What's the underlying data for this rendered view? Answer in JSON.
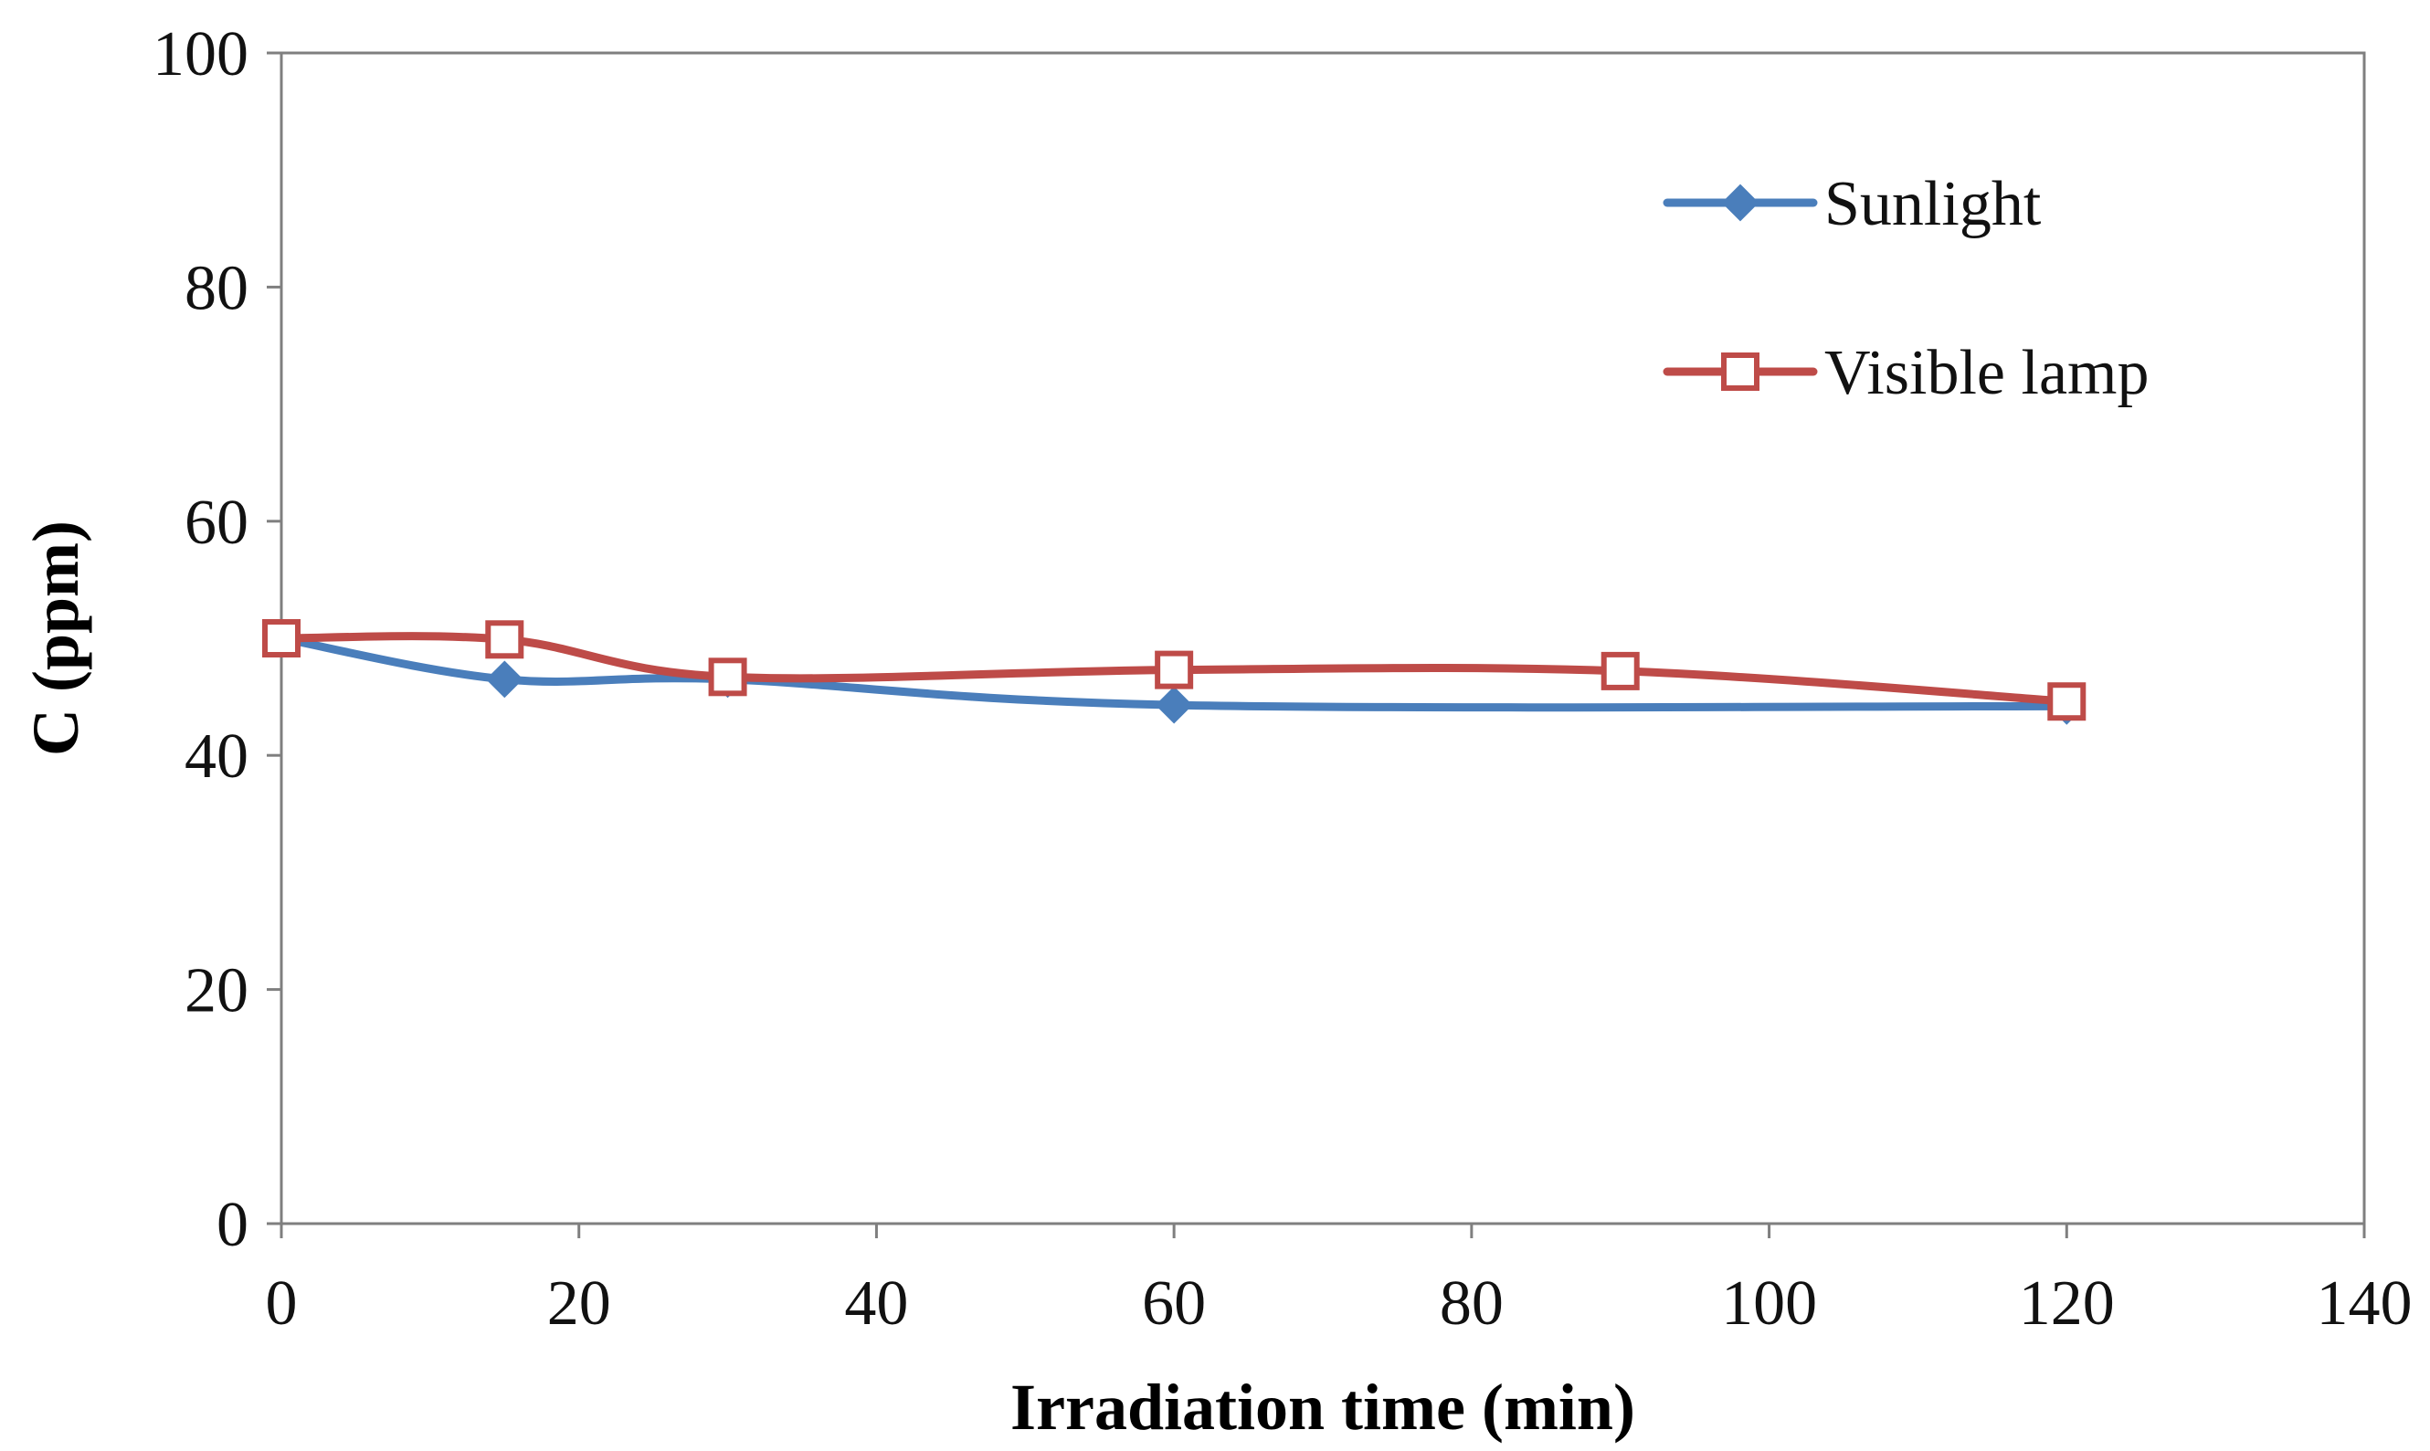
{
  "chart_data": {
    "type": "line",
    "title": "",
    "xlabel": "Irradiation time (min)",
    "ylabel": "C (ppm)",
    "xlim": [
      0,
      140
    ],
    "ylim": [
      0,
      100
    ],
    "xticks": [
      0,
      20,
      40,
      60,
      80,
      100,
      120,
      140
    ],
    "yticks": [
      0,
      20,
      40,
      60,
      80,
      100
    ],
    "grid": false,
    "legend_position": "top-right",
    "series": [
      {
        "name": "Sunlight",
        "color": "#4a7ebb",
        "marker": "diamond",
        "x": [
          0,
          15,
          30,
          60,
          120
        ],
        "y": [
          50.0,
          46.5,
          46.5,
          44.3,
          44.2
        ]
      },
      {
        "name": "Visible lamp",
        "color": "#be4b48",
        "marker": "square-open",
        "x": [
          0,
          15,
          30,
          60,
          90,
          120
        ],
        "y": [
          50.0,
          49.9,
          46.7,
          47.3,
          47.2,
          44.6
        ]
      }
    ]
  }
}
